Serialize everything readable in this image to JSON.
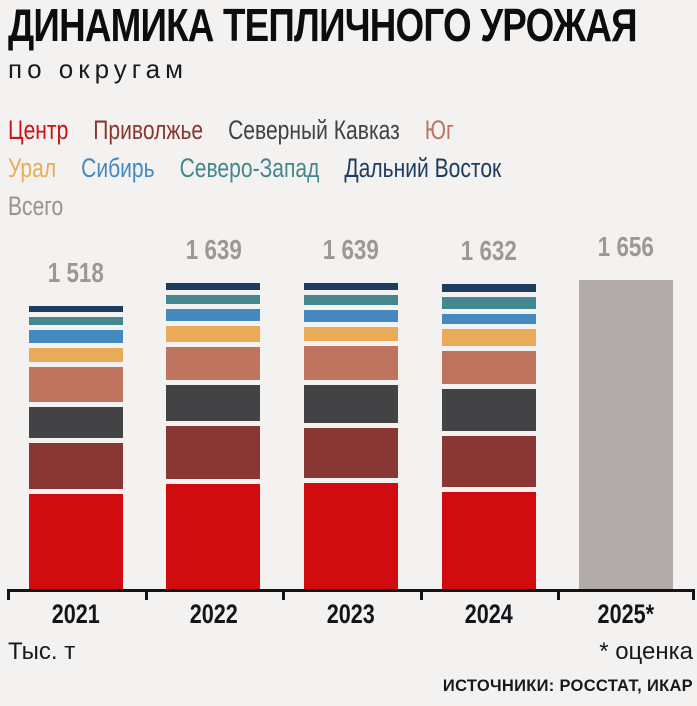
{
  "header": {
    "title": "ДИНАМИКА ТЕПЛИЧНОГО УРОЖАЯ",
    "subtitle": "по округам"
  },
  "legend": {
    "rows": [
      [
        {
          "label": "Центр",
          "color": "#cc1114"
        },
        {
          "label": "Приволжье",
          "color": "#8a3734"
        },
        {
          "label": "Северный Кавказ",
          "color": "#424244"
        },
        {
          "label": "Юг",
          "color": "#bd7460"
        }
      ],
      [
        {
          "label": "Урал",
          "color": "#e9ab58"
        },
        {
          "label": "Сибирь",
          "color": "#4489bf"
        },
        {
          "label": "Северо-Запад",
          "color": "#45878e"
        },
        {
          "label": "Дальний Восток",
          "color": "#1d3c60"
        }
      ],
      [
        {
          "label": "Всего",
          "color": "#98928f"
        }
      ]
    ]
  },
  "chart_data": {
    "type": "bar",
    "stacked": true,
    "title": "ДИНАМИКА ТЕПЛИЧНОГО УРОЖАЯ по округам",
    "ylabel": "Тыс. т",
    "categories": [
      "2021",
      "2022",
      "2023",
      "2024",
      "2025*"
    ],
    "totals": [
      1518,
      1639,
      1639,
      1632,
      1656
    ],
    "totals_display": [
      "1 518",
      "1 639",
      "1 639",
      "1 632",
      "1 656"
    ],
    "series": [
      {
        "name": "Центр",
        "color": "#d10c11",
        "values": [
          538,
          590,
          595,
          549,
          null
        ]
      },
      {
        "name": "Приволжье",
        "color": "#8a3633",
        "values": [
          269,
          312,
          295,
          300,
          null
        ]
      },
      {
        "name": "Северный Кавказ",
        "color": "#434345",
        "values": [
          194,
          218,
          229,
          249,
          null
        ]
      },
      {
        "name": "Юг",
        "color": "#bf7460",
        "values": [
          218,
          204,
          211,
          202,
          null
        ]
      },
      {
        "name": "Урал",
        "color": "#e9ab58",
        "values": [
          97,
          113,
          102,
          118,
          null
        ]
      },
      {
        "name": "Сибирь",
        "color": "#4489bf",
        "values": [
          100,
          91,
          91,
          85,
          null
        ]
      },
      {
        "name": "Северо-Запад",
        "color": "#45878e",
        "values": [
          70,
          73,
          78,
          86,
          null
        ]
      },
      {
        "name": "Дальний Восток",
        "color": "#1d3c60",
        "values": [
          32,
          38,
          38,
          43,
          null
        ]
      },
      {
        "name": "Всего",
        "color": "#b3aba9",
        "values": [
          null,
          null,
          null,
          null,
          1656
        ]
      }
    ],
    "layout_hints": {
      "background": "#f4f2f0",
      "axis_color": "#141414",
      "value_label_color": "#9b9997",
      "segment_gap_color": "#fbfaf8",
      "legend_position": "top",
      "grid": false
    },
    "notes": {
      "estimate_category": "2025*",
      "estimate_note": "* оценка"
    }
  },
  "footer": {
    "unit": "Тыс. т",
    "estimate_note": "* оценка",
    "source": "ИСТОЧНИКИ: РОССТАТ, ИКАР"
  }
}
